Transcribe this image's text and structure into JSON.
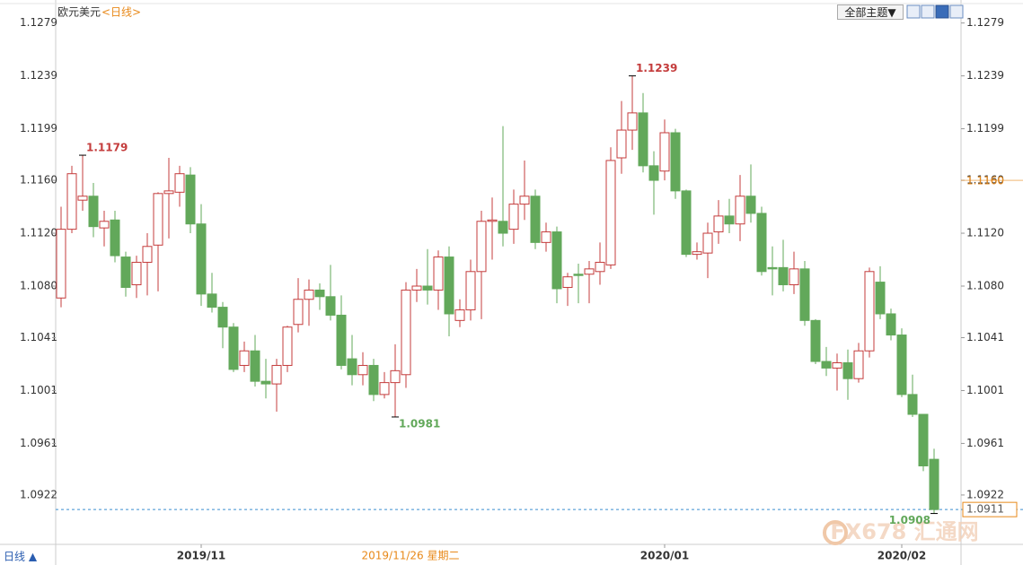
{
  "chart_data": {
    "type": "candlestick",
    "title": "欧元美元",
    "period": "<日线>",
    "period_button": "日线 ▲",
    "theme_button": "全部主题▼",
    "watermark": "FX678 汇通网",
    "categories": [
      null,
      null,
      null,
      null,
      null,
      null,
      null,
      null,
      null,
      null,
      null,
      null,
      null,
      "2019/11",
      null,
      null,
      null,
      null,
      null,
      null,
      null,
      null,
      null,
      null,
      null,
      null,
      null,
      null,
      null,
      null,
      null,
      null,
      null,
      null,
      null,
      null,
      null,
      null,
      null,
      null,
      null,
      null,
      null,
      null,
      null,
      null,
      null,
      null,
      null,
      null,
      null,
      null,
      null,
      null,
      null,
      null,
      "2020/01",
      null,
      null,
      null,
      null,
      null,
      null,
      null,
      null,
      null,
      null,
      null,
      null,
      null,
      null,
      null,
      null,
      null,
      null,
      null,
      null,
      null,
      "2020/02",
      null,
      null,
      null
    ],
    "open": [
      1.1071,
      1.1123,
      1.1145,
      1.1148,
      1.1124,
      1.113,
      1.1102,
      1.1081,
      1.1098,
      1.1111,
      1.115,
      1.1151,
      1.1164,
      1.1127,
      1.1074,
      1.1064,
      1.1049,
      1.102,
      1.1031,
      1.1008,
      1.1006,
      1.102,
      1.1051,
      1.107,
      1.1077,
      1.1072,
      1.1058,
      1.1025,
      1.1013,
      1.102,
      1.0998,
      1.1007,
      1.1013,
      1.1077,
      1.108,
      1.1077,
      1.1102,
      1.1054,
      1.1062,
      1.1091,
      1.1129,
      1.1129,
      1.1123,
      1.1142,
      1.1148,
      1.1113,
      1.1121,
      1.1079,
      1.1089,
      1.1089,
      1.1091,
      1.1096,
      1.1177,
      1.1198,
      1.1211,
      1.1171,
      1.1167,
      1.1196,
      1.1152,
      1.1104,
      1.1105,
      1.1121,
      1.1133,
      1.1127,
      1.1148,
      1.1135,
      1.1094,
      1.1094,
      1.1081,
      1.1093,
      1.1054,
      1.1023,
      1.1018,
      1.1022,
      1.101,
      1.1031,
      1.1083,
      1.1059,
      1.1043,
      1.0998,
      1.0983,
      1.0949
    ],
    "high": [
      1.114,
      1.1171,
      1.1179,
      1.1158,
      1.1137,
      1.1137,
      1.1106,
      1.1103,
      1.112,
      1.1151,
      1.1177,
      1.1171,
      1.117,
      1.1142,
      1.109,
      1.1068,
      1.1052,
      1.1038,
      1.1043,
      1.1025,
      1.1025,
      1.105,
      1.1086,
      1.1085,
      1.1082,
      1.1096,
      1.1073,
      1.1043,
      1.103,
      1.1025,
      1.1015,
      1.1036,
      1.1083,
      1.1093,
      1.1108,
      1.1107,
      1.111,
      1.107,
      1.11,
      1.1137,
      1.1147,
      1.1201,
      1.1153,
      1.1175,
      1.1153,
      1.1128,
      1.1125,
      1.109,
      1.1097,
      1.1099,
      1.1113,
      1.1185,
      1.122,
      1.1239,
      1.1226,
      1.1182,
      1.1206,
      1.1199,
      1.1153,
      1.1113,
      1.1128,
      1.1145,
      1.1146,
      1.1164,
      1.1172,
      1.114,
      1.111,
      1.1115,
      1.1106,
      1.1099,
      1.1055,
      1.1034,
      1.1029,
      1.1032,
      1.1037,
      1.1094,
      1.1095,
      1.1063,
      1.1048,
      1.1013,
      1.0983,
      1.0957
    ],
    "low": [
      1.1064,
      1.112,
      1.1137,
      1.1117,
      1.111,
      1.1098,
      1.1072,
      1.1071,
      1.1073,
      1.1076,
      1.1116,
      1.114,
      1.112,
      1.1065,
      1.106,
      1.1033,
      1.1015,
      1.1015,
      1.1004,
      1.0995,
      1.0985,
      1.1015,
      1.1045,
      1.105,
      1.1062,
      1.1054,
      1.1017,
      1.1005,
      1.1005,
      1.0993,
      1.0995,
      1.0981,
      1.1003,
      1.1068,
      1.1066,
      1.1062,
      1.1042,
      1.1049,
      1.1054,
      1.1055,
      1.11,
      1.111,
      1.1112,
      1.113,
      1.1108,
      1.1106,
      1.1067,
      1.1065,
      1.1067,
      1.1067,
      1.1081,
      1.1093,
      1.1165,
      1.1183,
      1.1166,
      1.1134,
      1.116,
      1.1146,
      1.1102,
      1.11,
      1.1086,
      1.1112,
      1.112,
      1.1114,
      1.1128,
      1.1088,
      1.1073,
      1.1076,
      1.1074,
      1.105,
      1.1021,
      1.1012,
      1.1001,
      1.0994,
      1.1007,
      1.1026,
      1.1055,
      1.1039,
      1.0996,
      1.0981,
      1.094,
      1.0908
    ],
    "close": [
      1.1123,
      1.1165,
      1.1148,
      1.1125,
      1.1129,
      1.1103,
      1.1079,
      1.1098,
      1.111,
      1.115,
      1.1152,
      1.1165,
      1.1127,
      1.1074,
      1.1064,
      1.1049,
      1.1017,
      1.1031,
      1.1008,
      1.1006,
      1.102,
      1.1049,
      1.107,
      1.1077,
      1.1072,
      1.1058,
      1.102,
      1.1013,
      1.102,
      1.0998,
      1.1007,
      1.1016,
      1.1077,
      1.108,
      1.1077,
      1.1102,
      1.1059,
      1.1062,
      1.1091,
      1.1129,
      1.113,
      1.112,
      1.1142,
      1.1148,
      1.1113,
      1.1121,
      1.1078,
      1.1087,
      1.1088,
      1.1093,
      1.1098,
      1.1175,
      1.1198,
      1.1211,
      1.1171,
      1.116,
      1.1196,
      1.1152,
      1.1104,
      1.1106,
      1.112,
      1.1133,
      1.1127,
      1.1148,
      1.1135,
      1.1091,
      1.1093,
      1.1081,
      1.1093,
      1.1054,
      1.1023,
      1.1018,
      1.1022,
      1.101,
      1.1031,
      1.1091,
      1.1059,
      1.1043,
      1.0998,
      1.0983,
      1.0944,
      1.0911
    ],
    "up_color": "#c43c3c",
    "down_color": "#62a85a",
    "high_labels": [
      1.1179,
      1.1239
    ],
    "low_labels": [
      1.0981,
      1.0908
    ],
    "current_price": 1.0911,
    "crosshair": {
      "date": "2019/11/26 星期二",
      "price": {
        "value": 1.116,
        "label": "1.1160"
      },
      "color": "#e8891a"
    },
    "ylim": [
      1.0886,
      1.1293
    ],
    "yticks": [
      1.1279,
      1.1239,
      1.1199,
      {
        "value": 1.116,
        "label": "1.1160"
      },
      {
        "value": 1.112,
        "label": "1.1120"
      },
      {
        "value": 1.108,
        "label": "1.1080"
      },
      1.1041,
      1.1001,
      1.0961,
      1.0922
    ],
    "grid": false
  }
}
